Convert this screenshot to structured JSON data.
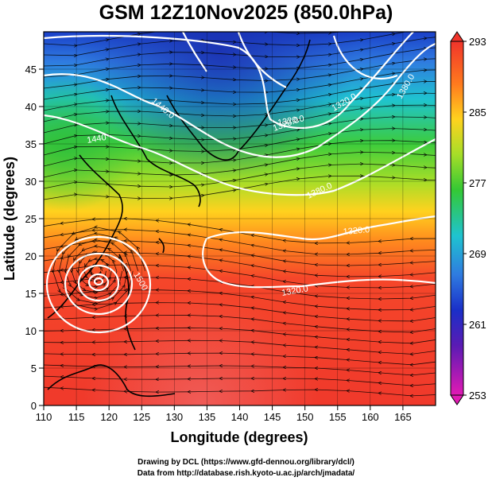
{
  "title": "GSM 12Z10Nov2025 (850.0hPa)",
  "xlabel": "Longitude (degrees)",
  "ylabel": "Latitude  (degrees)",
  "xticks": [
    "110",
    "115",
    "120",
    "125",
    "130",
    "135",
    "140",
    "145",
    "150",
    "155",
    "160",
    "165"
  ],
  "yticks": [
    "0",
    "5",
    "10",
    "15",
    "20",
    "25",
    "30",
    "35",
    "40",
    "45"
  ],
  "colorbar": {
    "labels": [
      "293",
      "285",
      "277",
      "269",
      "261",
      "253"
    ]
  },
  "contour_labels": [
    "1440.0",
    "1440",
    "1320.0",
    "1320.0",
    "1380.0",
    "1380.0",
    "1320.0",
    "1320.0",
    "1320.0",
    "1500"
  ],
  "credit_line1": "Drawing by DCL (https://www.gfd-dennou.org/library/dcl/)",
  "credit_line2": "Data from http://database.rish.kyoto-u.ac.jp/arch/jmadata/",
  "map_data": {
    "lon_range": [
      110,
      170
    ],
    "lat_range": [
      0,
      50
    ],
    "temperature_range_K": [
      253,
      293
    ],
    "cyclone_center": {
      "lon": 118,
      "lat": 18
    },
    "variable": "temperature, geopotential height, streamlines"
  }
}
